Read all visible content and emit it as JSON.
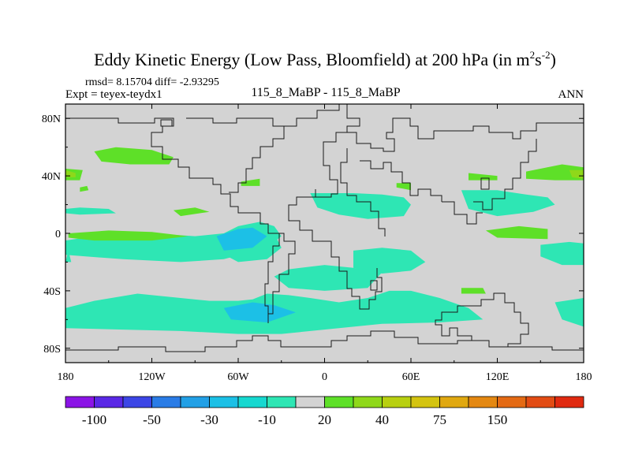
{
  "chart_data": {
    "type": "heatmap",
    "title_main": "Eddy Kinetic Energy (Low Pass, Bloomfield) at 200 hPa (in m",
    "title_units_sup1": "2",
    "title_units_mid": "s",
    "title_units_sup2": "-2",
    "title_units_end": ")",
    "stats": "rmsd= 8.15704 diff= -2.93295",
    "expt": "Expt = teyex-teydx1",
    "comparison": "115_8_MaBP - 115_8_MaBP",
    "season": "ANN",
    "lon_range": [
      -180,
      180
    ],
    "lat_range": [
      -90,
      90
    ],
    "x_ticks": [
      {
        "value": -180,
        "label": "180"
      },
      {
        "value": -120,
        "label": "120W"
      },
      {
        "value": -60,
        "label": "60W"
      },
      {
        "value": 0,
        "label": "0"
      },
      {
        "value": 60,
        "label": "60E"
      },
      {
        "value": 120,
        "label": "120E"
      },
      {
        "value": 180,
        "label": "180"
      }
    ],
    "y_ticks": [
      {
        "value": 80,
        "label": "80N"
      },
      {
        "value": 40,
        "label": "40N"
      },
      {
        "value": 0,
        "label": "0"
      },
      {
        "value": -40,
        "label": "40S"
      },
      {
        "value": -80,
        "label": "80S"
      }
    ],
    "background_color": "#d3d3d3",
    "colorbar": {
      "colors": [
        "#8b14e6",
        "#5a28e6",
        "#3c46e6",
        "#2a7ce6",
        "#22a0e6",
        "#1cc0e6",
        "#16d8d0",
        "#2ee6b4",
        "#d3d3d3",
        "#5ee028",
        "#8fd81a",
        "#b8d010",
        "#d4c410",
        "#e0a810",
        "#e48812",
        "#e46a14",
        "#e24c14",
        "#e02a10"
      ],
      "labels": [
        {
          "after_box": 1,
          "text": "-100"
        },
        {
          "after_box": 3,
          "text": "-50"
        },
        {
          "after_box": 5,
          "text": "-30"
        },
        {
          "after_box": 7,
          "text": "-10"
        },
        {
          "after_box": 9,
          "text": "20"
        },
        {
          "after_box": 11,
          "text": "40"
        },
        {
          "after_box": 13,
          "text": "75"
        },
        {
          "after_box": 15,
          "text": "150"
        }
      ]
    },
    "regions": [
      {
        "level": "-5 to -10",
        "color": "#2ee6b4",
        "points": [
          [
            -180,
            -52
          ],
          [
            -160,
            -47
          ],
          [
            -130,
            -42
          ],
          [
            -100,
            -45
          ],
          [
            -80,
            -47
          ],
          [
            -60,
            -47
          ],
          [
            -50,
            -46
          ],
          [
            -40,
            -42
          ],
          [
            -25,
            -43
          ],
          [
            -10,
            -45
          ],
          [
            10,
            -48
          ],
          [
            30,
            -45
          ],
          [
            45,
            -40
          ],
          [
            60,
            -40
          ],
          [
            80,
            -45
          ],
          [
            100,
            -52
          ],
          [
            110,
            -60
          ],
          [
            80,
            -62
          ],
          [
            40,
            -63
          ],
          [
            10,
            -66
          ],
          [
            -30,
            -70
          ],
          [
            -60,
            -70
          ],
          [
            -100,
            -68
          ],
          [
            -140,
            -67
          ],
          [
            -180,
            -66
          ]
        ]
      },
      {
        "level": "-5 to -10",
        "color": "#2ee6b4",
        "points": [
          [
            -180,
            -5
          ],
          [
            -160,
            -2
          ],
          [
            -120,
            0
          ],
          [
            -90,
            -2
          ],
          [
            -70,
            0
          ],
          [
            -60,
            5
          ],
          [
            -45,
            8
          ],
          [
            -35,
            5
          ],
          [
            -30,
            -2
          ],
          [
            -40,
            -10
          ],
          [
            -70,
            -18
          ],
          [
            -100,
            -20
          ],
          [
            -140,
            -18
          ],
          [
            -180,
            -15
          ]
        ]
      },
      {
        "level": "-5 to -10",
        "color": "#2ee6b4",
        "points": [
          [
            -75,
            -5
          ],
          [
            -60,
            3
          ],
          [
            -45,
            7
          ],
          [
            -35,
            0
          ],
          [
            -30,
            -10
          ],
          [
            -40,
            -18
          ],
          [
            -60,
            -20
          ],
          [
            -75,
            -12
          ]
        ]
      },
      {
        "level": "-5 to -10",
        "color": "#2ee6b4",
        "points": [
          [
            20,
            -12
          ],
          [
            40,
            -10
          ],
          [
            60,
            -12
          ],
          [
            70,
            -20
          ],
          [
            60,
            -26
          ],
          [
            40,
            -28
          ],
          [
            20,
            -24
          ]
        ]
      },
      {
        "level": "-5 to -10",
        "color": "#2ee6b4",
        "points": [
          [
            -25,
            -25
          ],
          [
            0,
            -22
          ],
          [
            20,
            -24
          ],
          [
            40,
            -27
          ],
          [
            30,
            -38
          ],
          [
            0,
            -40
          ],
          [
            -25,
            -38
          ],
          [
            -35,
            -30
          ]
        ]
      },
      {
        "level": "-5 to -10",
        "color": "#2ee6b4",
        "points": [
          [
            -10,
            28
          ],
          [
            20,
            28
          ],
          [
            40,
            27
          ],
          [
            55,
            25
          ],
          [
            60,
            20
          ],
          [
            55,
            12
          ],
          [
            30,
            10
          ],
          [
            10,
            13
          ],
          [
            -5,
            18
          ]
        ]
      },
      {
        "level": "-5 to -10",
        "color": "#2ee6b4",
        "points": [
          [
            95,
            30
          ],
          [
            120,
            30
          ],
          [
            140,
            27
          ],
          [
            155,
            25
          ],
          [
            160,
            20
          ],
          [
            145,
            15
          ],
          [
            120,
            12
          ],
          [
            100,
            17
          ]
        ]
      },
      {
        "level": "-5 to -10",
        "color": "#2ee6b4",
        "points": [
          [
            -180,
            -20
          ],
          [
            -178,
            -12
          ],
          [
            -176,
            -20
          ]
        ]
      },
      {
        "level": "-5 to -10",
        "color": "#2ee6b4",
        "points": [
          [
            150,
            -8
          ],
          [
            170,
            -6
          ],
          [
            180,
            -7
          ],
          [
            180,
            -22
          ],
          [
            165,
            -22
          ],
          [
            150,
            -16
          ]
        ]
      },
      {
        "level": "-5 to -10",
        "color": "#2ee6b4",
        "points": [
          [
            160,
            -48
          ],
          [
            180,
            -45
          ],
          [
            180,
            -65
          ],
          [
            165,
            -60
          ]
        ]
      },
      {
        "level": "-5 to -10",
        "color": "#2ee6b4",
        "points": [
          [
            -180,
            17
          ],
          [
            -170,
            18
          ],
          [
            -150,
            17
          ],
          [
            -145,
            14
          ],
          [
            -170,
            13
          ],
          [
            -180,
            14
          ]
        ]
      },
      {
        "level": "-10 to -30",
        "color": "#1cc0e6",
        "points": [
          [
            -75,
            -2
          ],
          [
            -60,
            3
          ],
          [
            -50,
            4
          ],
          [
            -40,
            -2
          ],
          [
            -50,
            -10
          ],
          [
            -70,
            -12
          ]
        ]
      },
      {
        "level": "-10 to -30",
        "color": "#1cc0e6",
        "points": [
          [
            -70,
            -52
          ],
          [
            -50,
            -48
          ],
          [
            -35,
            -50
          ],
          [
            -20,
            -55
          ],
          [
            -40,
            -62
          ],
          [
            -65,
            -60
          ]
        ]
      },
      {
        "level": "10 to 20",
        "color": "#5ee028",
        "points": [
          [
            -160,
            57
          ],
          [
            -145,
            60
          ],
          [
            -120,
            58
          ],
          [
            -105,
            53
          ],
          [
            -108,
            48
          ],
          [
            -135,
            48
          ],
          [
            -155,
            50
          ]
        ]
      },
      {
        "level": "10 to 20",
        "color": "#5ee028",
        "points": [
          [
            -180,
            45
          ],
          [
            -168,
            44
          ],
          [
            -170,
            37
          ],
          [
            -180,
            37
          ]
        ]
      },
      {
        "level": "10 to 20",
        "color": "#5ee028",
        "points": [
          [
            -178,
            0
          ],
          [
            -150,
            2
          ],
          [
            -120,
            1
          ],
          [
            -95,
            -2
          ],
          [
            -120,
            -5
          ],
          [
            -160,
            -5
          ],
          [
            -178,
            -3
          ]
        ]
      },
      {
        "level": "10 to 20",
        "color": "#5ee028",
        "points": [
          [
            -58,
            36
          ],
          [
            -45,
            38
          ],
          [
            -45,
            33
          ],
          [
            -58,
            33
          ]
        ]
      },
      {
        "level": "10 to 20",
        "color": "#5ee028",
        "points": [
          [
            -105,
            16
          ],
          [
            -90,
            18
          ],
          [
            -80,
            15
          ],
          [
            -100,
            12
          ]
        ]
      },
      {
        "level": "10 to 20",
        "color": "#5ee028",
        "points": [
          [
            -170,
            32
          ],
          [
            -165,
            33
          ],
          [
            -164,
            30
          ],
          [
            -170,
            29
          ]
        ]
      },
      {
        "level": "10 to 20",
        "color": "#5ee028",
        "points": [
          [
            100,
            42
          ],
          [
            120,
            40
          ],
          [
            120,
            37
          ],
          [
            100,
            37
          ]
        ]
      },
      {
        "level": "10 to 20",
        "color": "#5ee028",
        "points": [
          [
            140,
            43
          ],
          [
            165,
            48
          ],
          [
            180,
            46
          ],
          [
            180,
            37
          ],
          [
            160,
            37
          ],
          [
            140,
            38
          ]
        ]
      },
      {
        "level": "10 to 20",
        "color": "#5ee028",
        "points": [
          [
            112,
            2
          ],
          [
            135,
            5
          ],
          [
            155,
            3
          ],
          [
            155,
            -4
          ],
          [
            120,
            -3
          ]
        ]
      },
      {
        "level": "10 to 20",
        "color": "#5ee028",
        "points": [
          [
            95,
            -38
          ],
          [
            110,
            -38
          ],
          [
            112,
            -42
          ],
          [
            95,
            -42
          ]
        ]
      },
      {
        "level": "10 to 20",
        "color": "#5ee028",
        "points": [
          [
            50,
            35
          ],
          [
            60,
            35
          ],
          [
            60,
            30
          ],
          [
            50,
            32
          ]
        ]
      },
      {
        "level": "20 to 30",
        "color": "#8fd81a",
        "points": [
          [
            -180,
            44
          ],
          [
            -173,
            42
          ],
          [
            -173,
            39
          ],
          [
            -180,
            39
          ]
        ]
      },
      {
        "level": "20 to 30",
        "color": "#8fd81a",
        "points": [
          [
            170,
            44
          ],
          [
            180,
            44
          ],
          [
            180,
            38
          ],
          [
            172,
            39
          ]
        ]
      }
    ]
  }
}
